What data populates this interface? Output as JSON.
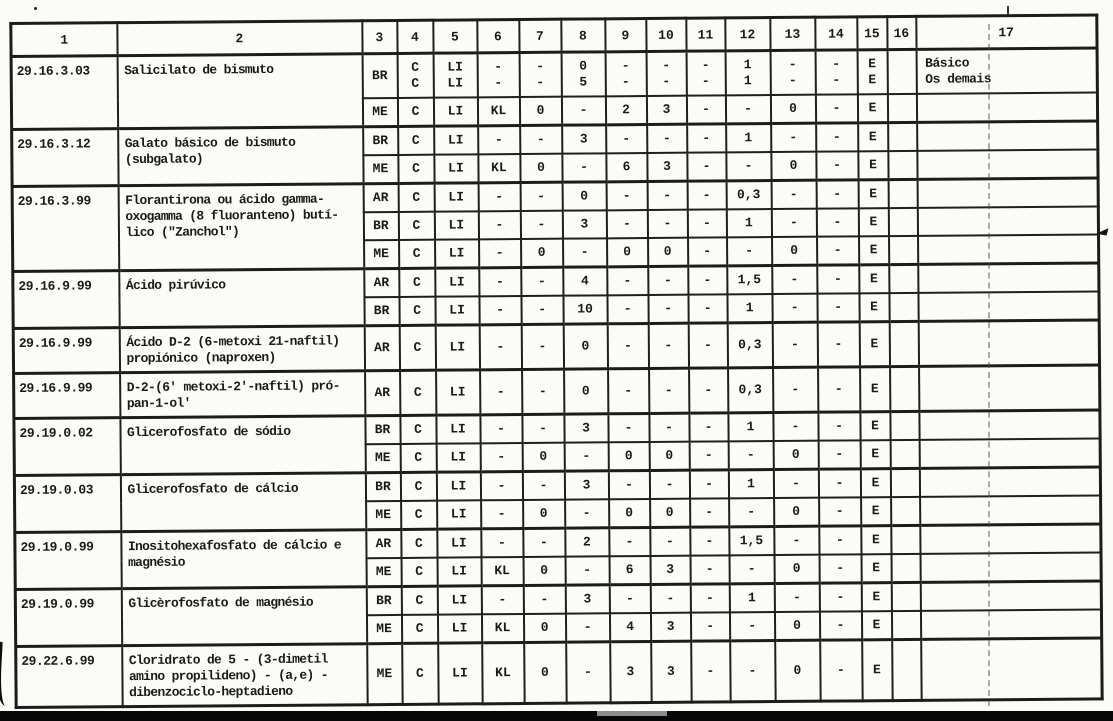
{
  "header": {
    "columns": [
      "1",
      "2",
      "3",
      "4",
      "5",
      "6",
      "7",
      "8",
      "9",
      "10",
      "11",
      "12",
      "13",
      "14",
      "15",
      "16",
      "17"
    ]
  },
  "rows": [
    {
      "code": "29.16.3.03",
      "description": "Salicilato de bismuto",
      "subrows": [
        {
          "cells": [
            "BR",
            "C\nC",
            "LI\nLI",
            "-\n-",
            "-\n-",
            "0\n5",
            "-\n-",
            "-\n-",
            "-\n-",
            "1\n1",
            "-\n-",
            "-\n-",
            "E\nE",
            "",
            "Básico\nOs demais"
          ]
        },
        {
          "cells": [
            "ME",
            "C",
            "LI",
            "KL",
            "0",
            "-",
            "2",
            "3",
            "-",
            "-",
            "0",
            "-",
            "E",
            "",
            ""
          ]
        }
      ]
    },
    {
      "code": "29.16.3.12",
      "description": "Galato básico de bismuto\n(subgalato)",
      "subrows": [
        {
          "cells": [
            "BR",
            "C",
            "LI",
            "-",
            "-",
            "3",
            "-",
            "-",
            "-",
            "1",
            "-",
            "-",
            "E",
            "",
            ""
          ]
        },
        {
          "cells": [
            "ME",
            "C",
            "LI",
            "KL",
            "0",
            "-",
            "6",
            "3",
            "-",
            "-",
            "0",
            "-",
            "E",
            "",
            ""
          ]
        }
      ]
    },
    {
      "code": "29.16.3.99",
      "description": "Florantirona ou ácido gamma-\noxogamma (8 fluoranteno) butí-\nlico (\"Zanchol\")",
      "subrows": [
        {
          "cells": [
            "AR",
            "C",
            "LI",
            "-",
            "-",
            "0",
            "-",
            "-",
            "-",
            "0,3",
            "-",
            "-",
            "E",
            "",
            ""
          ]
        },
        {
          "cells": [
            "BR",
            "C",
            "LI",
            "-",
            "-",
            "3",
            "-",
            "-",
            "-",
            "1",
            "-",
            "-",
            "E",
            "",
            ""
          ]
        },
        {
          "cells": [
            "ME",
            "C",
            "LI",
            "-",
            "0",
            "-",
            "0",
            "0",
            "-",
            "-",
            "0",
            "-",
            "E",
            "",
            ""
          ]
        }
      ]
    },
    {
      "code": "29.16.9.99",
      "description": "Ácido pirúvico",
      "subrows": [
        {
          "cells": [
            "AR",
            "C",
            "LI",
            "-",
            "-",
            "4",
            "-",
            "-",
            "-",
            "1,5",
            "-",
            "-",
            "E",
            "",
            ""
          ]
        },
        {
          "cells": [
            "BR",
            "C",
            "LI",
            "-",
            "-",
            "10",
            "-",
            "-",
            "-",
            "1",
            "-",
            "-",
            "E",
            "",
            ""
          ]
        }
      ]
    },
    {
      "code": "29.16.9.99",
      "description": "Ácido D-2 (6-metoxi 21-naftil)\npropiónico (naproxen)",
      "subrows": [
        {
          "cells": [
            "AR",
            "C",
            "LI",
            "-",
            "-",
            "0",
            "-",
            "-",
            "-",
            "0,3",
            "-",
            "-",
            "E",
            "",
            ""
          ]
        }
      ]
    },
    {
      "code": "29.16.9.99",
      "description": "D-2-(6' metoxi-2'-naftil) pró-\npan-1-ol'",
      "subrows": [
        {
          "cells": [
            "AR",
            "C",
            "LI",
            "-",
            "-",
            "0",
            "-",
            "-",
            "-",
            "0,3",
            "-",
            "-",
            "E",
            "",
            ""
          ]
        }
      ]
    },
    {
      "code": "29.19.0.02",
      "description": "Glicerofosfato de sódio",
      "subrows": [
        {
          "cells": [
            "BR",
            "C",
            "LI",
            "-",
            "-",
            "3",
            "-",
            "-",
            "-",
            "1",
            "-",
            "-",
            "E",
            "",
            ""
          ]
        },
        {
          "cells": [
            "ME",
            "C",
            "LI",
            "-",
            "0",
            "-",
            "0",
            "0",
            "-",
            "-",
            "0",
            "-",
            "E",
            "",
            ""
          ]
        }
      ]
    },
    {
      "code": "29.19.0.03",
      "description": "Glicerofosfato de cálcio",
      "subrows": [
        {
          "cells": [
            "BR",
            "C",
            "LI",
            "-",
            "-",
            "3",
            "-",
            "-",
            "-",
            "1",
            "-",
            "-",
            "E",
            "",
            ""
          ]
        },
        {
          "cells": [
            "ME",
            "C",
            "LI",
            "-",
            "0",
            "-",
            "0",
            "0",
            "-",
            "-",
            "0",
            "-",
            "E",
            "",
            ""
          ]
        }
      ]
    },
    {
      "code": "29.19.0.99",
      "description": "Inositohexafosfato de cálcio e\nmagnésio",
      "subrows": [
        {
          "cells": [
            "AR",
            "C",
            "LI",
            "-",
            "-",
            "2",
            "-",
            "-",
            "-",
            "1,5",
            "-",
            "-",
            "E",
            "",
            ""
          ]
        },
        {
          "cells": [
            "ME",
            "C",
            "LI",
            "KL",
            "0",
            "-",
            "6",
            "3",
            "-",
            "-",
            "0",
            "-",
            "E",
            "",
            ""
          ]
        }
      ]
    },
    {
      "code": "29.19.0.99",
      "description": "Glicèrofosfato de magnésio",
      "subrows": [
        {
          "cells": [
            "BR",
            "C",
            "LI",
            "-",
            "-",
            "3",
            "-",
            "-",
            "-",
            "1",
            "-",
            "-",
            "E",
            "",
            ""
          ]
        },
        {
          "cells": [
            "ME",
            "C",
            "LI",
            "KL",
            "0",
            "-",
            "4",
            "3",
            "-",
            "-",
            "0",
            "-",
            "E",
            "",
            ""
          ]
        }
      ]
    },
    {
      "code": "29.22.6.99",
      "description": "Cloridrato de 5 - (3-dimetil\namino propilideno) - (a,e) -\ndibenzociclo-heptadieno",
      "subrows": [
        {
          "cells": [
            "ME",
            "C",
            "LI",
            "KL",
            "0",
            "-",
            "3",
            "3",
            "-",
            "-",
            "0",
            "-",
            "E",
            "",
            ""
          ]
        }
      ]
    }
  ]
}
